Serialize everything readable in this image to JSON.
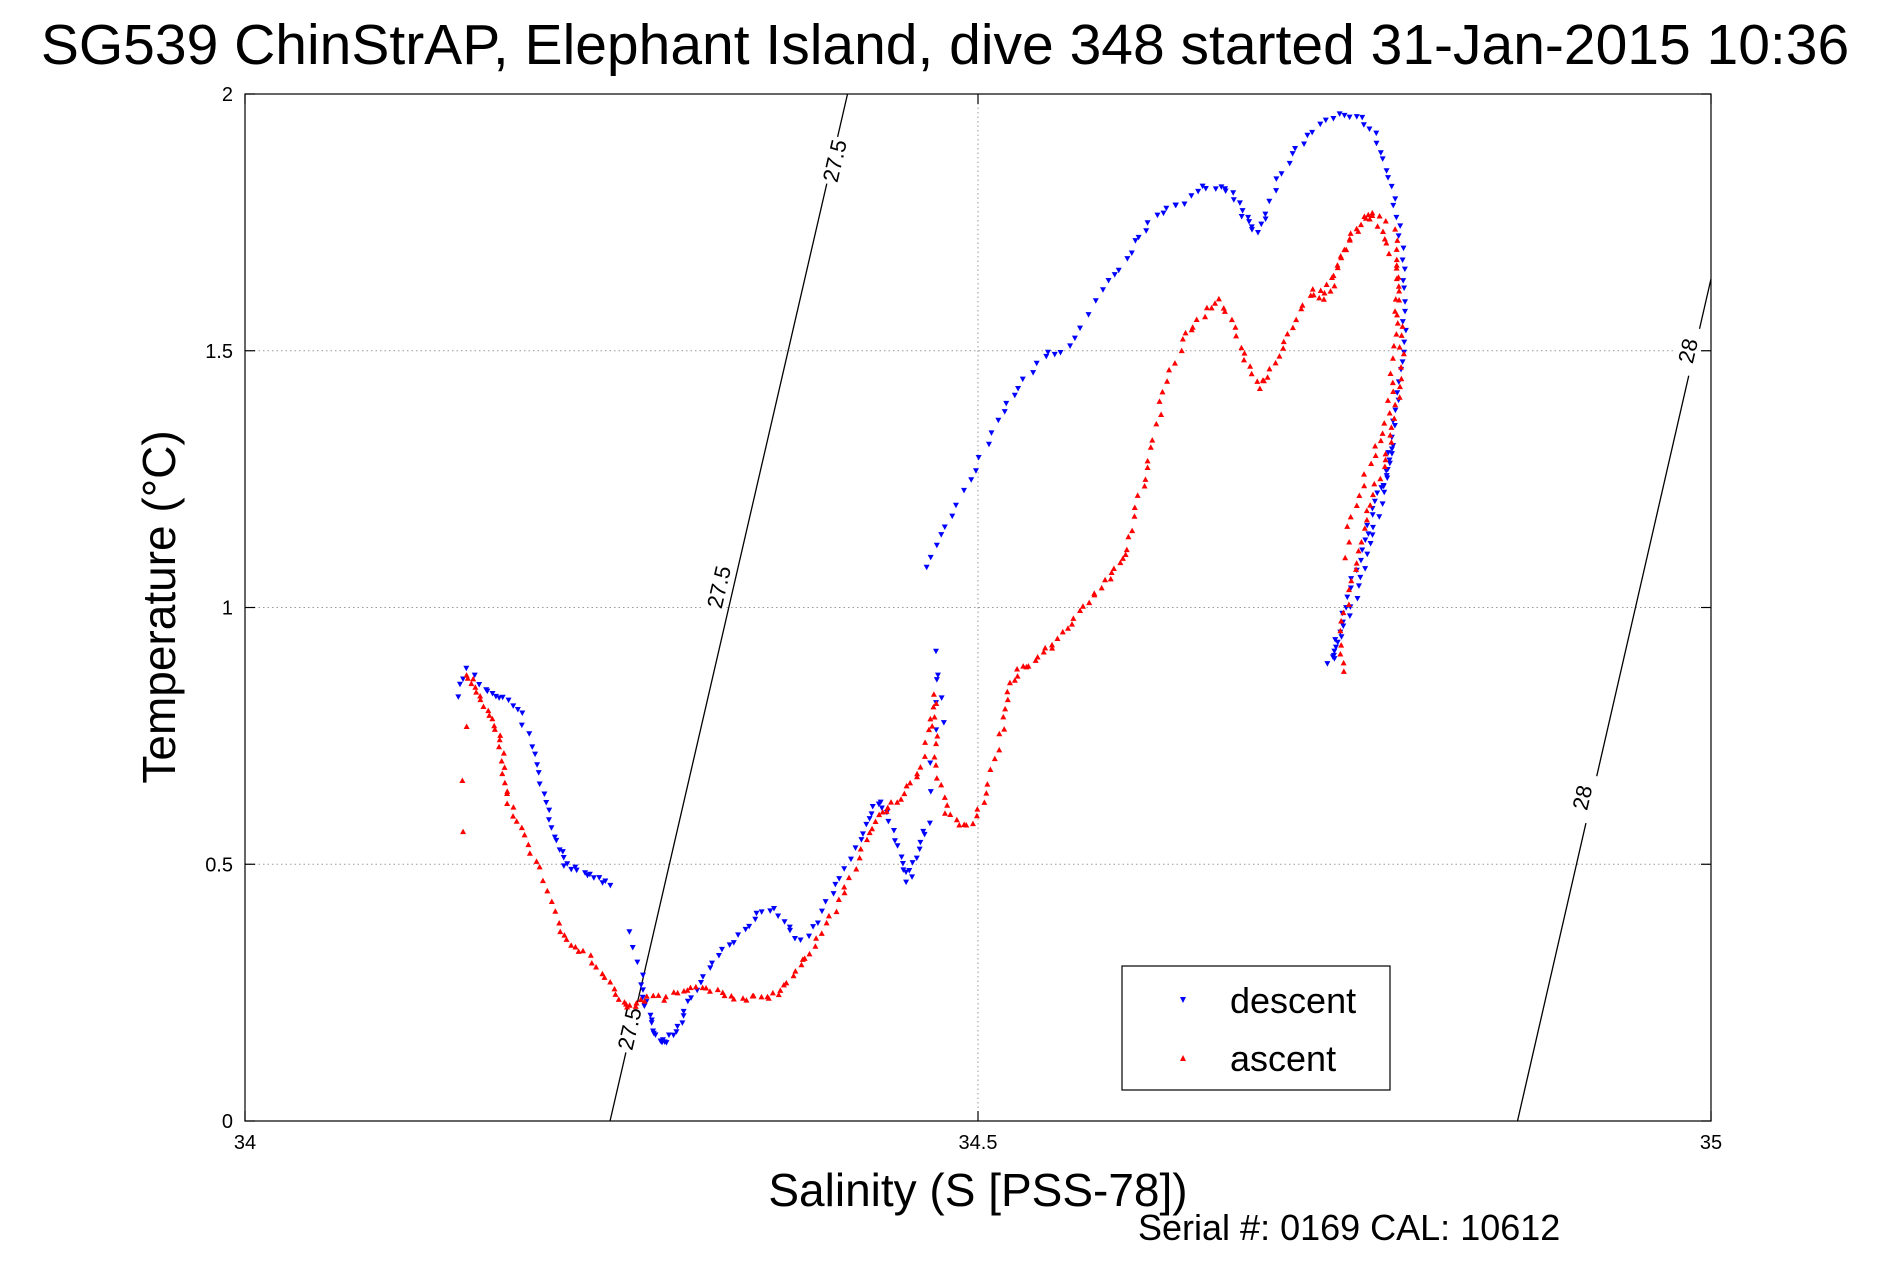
{
  "chart_data": {
    "type": "scatter",
    "title": "SG539 ChinStrAP, Elephant Island, dive 348 started 31-Jan-2015 10:36",
    "xlabel": "Salinity (S [PSS-78])",
    "ylabel": "Temperature (°C)",
    "xlim": [
      34,
      35
    ],
    "ylim": [
      0,
      2
    ],
    "x_ticks": [
      34,
      34.5,
      35
    ],
    "x_tick_labels": [
      "34",
      "34.5",
      "35"
    ],
    "y_ticks": [
      0,
      0.5,
      1,
      1.5,
      2
    ],
    "y_tick_labels": [
      "0",
      "0.5",
      "1",
      "1.5",
      "2"
    ],
    "grid": true,
    "legend_position": "bottom-right",
    "footer": "Serial #: 0169 CAL: 10612",
    "contours": [
      {
        "label": "27.5",
        "points": [
          [
            34.249,
            0
          ],
          [
            34.411,
            2
          ]
        ],
        "label_positions": [
          [
            34.262,
            0.18
          ],
          [
            34.323,
            1.04
          ],
          [
            34.402,
            1.87
          ]
        ]
      },
      {
        "label": "28",
        "points": [
          [
            34.868,
            0
          ],
          [
            35,
            1.64
          ]
        ],
        "label_positions": [
          [
            34.912,
            0.63
          ],
          [
            34.984,
            1.5
          ]
        ]
      }
    ],
    "colors": {
      "descent": "#0000ff",
      "ascent": "#ff0000"
    },
    "series": [
      {
        "name": "descent",
        "marker": "triangle-down",
        "tracks": [
          [
            [
              34.145,
              0.83
            ],
            [
              34.152,
              0.88
            ],
            [
              34.163,
              0.84
            ],
            [
              34.172,
              0.83
            ],
            [
              34.18,
              0.82
            ],
            [
              34.188,
              0.79
            ],
            [
              34.195,
              0.73
            ],
            [
              34.2,
              0.68
            ],
            [
              34.205,
              0.62
            ],
            [
              34.21,
              0.57
            ],
            [
              34.214,
              0.53
            ],
            [
              34.218,
              0.5
            ],
            [
              34.225,
              0.49
            ],
            [
              34.233,
              0.48
            ],
            [
              34.24,
              0.47
            ],
            [
              34.248,
              0.46
            ]
          ],
          [
            [
              34.262,
              0.37
            ],
            [
              34.27,
              0.28
            ],
            [
              34.272,
              0.24
            ],
            [
              34.275,
              0.21
            ],
            [
              34.279,
              0.18
            ],
            [
              34.283,
              0.16
            ],
            [
              34.287,
              0.15
            ],
            [
              34.292,
              0.17
            ],
            [
              34.297,
              0.19
            ],
            [
              34.302,
              0.23
            ],
            [
              34.31,
              0.27
            ],
            [
              34.32,
              0.31
            ],
            [
              34.33,
              0.34
            ],
            [
              34.34,
              0.37
            ],
            [
              34.35,
              0.4
            ],
            [
              34.36,
              0.41
            ],
            [
              34.37,
              0.38
            ],
            [
              34.38,
              0.35
            ],
            [
              34.39,
              0.39
            ],
            [
              34.4,
              0.44
            ],
            [
              34.41,
              0.49
            ],
            [
              34.42,
              0.55
            ],
            [
              34.425,
              0.59
            ],
            [
              34.432,
              0.62
            ],
            [
              34.438,
              0.6
            ],
            [
              34.443,
              0.55
            ],
            [
              34.448,
              0.5
            ],
            [
              34.452,
              0.47
            ],
            [
              34.456,
              0.5
            ],
            [
              34.461,
              0.54
            ],
            [
              34.466,
              0.58
            ],
            [
              34.47,
              0.76
            ],
            [
              34.473,
              0.91
            ],
            [
              34.477,
              0.78
            ]
          ],
          [
            [
              34.466,
              1.08
            ],
            [
              34.475,
              1.14
            ],
            [
              34.486,
              1.2
            ],
            [
              34.498,
              1.27
            ],
            [
              34.51,
              1.34
            ],
            [
              34.52,
              1.4
            ],
            [
              34.532,
              1.44
            ],
            [
              34.545,
              1.49
            ],
            [
              34.557,
              1.5
            ],
            [
              34.57,
              1.54
            ],
            [
              34.585,
              1.62
            ],
            [
              34.597,
              1.66
            ],
            [
              34.607,
              1.71
            ],
            [
              34.617,
              1.75
            ],
            [
              34.63,
              1.78
            ],
            [
              34.64,
              1.79
            ],
            [
              34.653,
              1.82
            ],
            [
              34.665,
              1.82
            ],
            [
              34.673,
              1.81
            ],
            [
              34.679,
              1.77
            ],
            [
              34.685,
              1.75
            ],
            [
              34.69,
              1.73
            ],
            [
              34.697,
              1.77
            ],
            [
              34.705,
              1.83
            ],
            [
              34.714,
              1.88
            ],
            [
              34.725,
              1.92
            ],
            [
              34.737,
              1.95
            ],
            [
              34.75,
              1.96
            ],
            [
              34.762,
              1.95
            ],
            [
              34.77,
              1.92
            ],
            [
              34.777,
              1.87
            ],
            [
              34.782,
              1.82
            ],
            [
              34.786,
              1.76
            ],
            [
              34.789,
              1.7
            ],
            [
              34.79,
              1.64
            ],
            [
              34.791,
              1.58
            ],
            [
              34.791,
              1.52
            ],
            [
              34.789,
              1.46
            ],
            [
              34.786,
              1.4
            ],
            [
              34.783,
              1.35
            ],
            [
              34.781,
              1.3
            ],
            [
              34.778,
              1.25
            ],
            [
              34.773,
              1.22
            ],
            [
              34.768,
              1.18
            ],
            [
              34.763,
              1.13
            ],
            [
              34.758,
              1.07
            ],
            [
              34.752,
              1.02
            ],
            [
              34.748,
              0.97
            ],
            [
              34.743,
              0.92
            ],
            [
              34.74,
              0.89
            ],
            [
              34.745,
              0.93
            ],
            [
              34.752,
              0.98
            ],
            [
              34.76,
              1.04
            ],
            [
              34.766,
              1.1
            ],
            [
              34.771,
              1.16
            ],
            [
              34.776,
              1.22
            ],
            [
              34.78,
              1.27
            ],
            [
              34.784,
              1.31
            ]
          ]
        ]
      },
      {
        "name": "ascent",
        "marker": "triangle-up",
        "tracks": [
          [
            [
              34.75,
              0.88
            ],
            [
              34.747,
              0.93
            ],
            [
              34.75,
              0.99
            ],
            [
              34.755,
              1.05
            ],
            [
              34.76,
              1.11
            ],
            [
              34.765,
              1.17
            ],
            [
              34.77,
              1.22
            ],
            [
              34.776,
              1.27
            ],
            [
              34.781,
              1.32
            ],
            [
              34.785,
              1.37
            ],
            [
              34.788,
              1.43
            ],
            [
              34.789,
              1.49
            ],
            [
              34.788,
              1.55
            ],
            [
              34.786,
              1.62
            ],
            [
              34.784,
              1.68
            ],
            [
              34.777,
              1.72
            ],
            [
              34.77,
              1.76
            ],
            [
              34.762,
              1.76
            ],
            [
              34.755,
              1.73
            ],
            [
              34.748,
              1.68
            ],
            [
              34.742,
              1.63
            ],
            [
              34.735,
              1.6
            ],
            [
              34.728,
              1.62
            ],
            [
              34.72,
              1.58
            ],
            [
              34.712,
              1.53
            ],
            [
              34.705,
              1.49
            ],
            [
              34.698,
              1.45
            ],
            [
              34.692,
              1.43
            ],
            [
              34.685,
              1.47
            ],
            [
              34.678,
              1.51
            ],
            [
              34.672,
              1.56
            ],
            [
              34.664,
              1.6
            ],
            [
              34.656,
              1.58
            ],
            [
              34.648,
              1.55
            ],
            [
              34.64,
              1.52
            ],
            [
              34.632,
              1.46
            ],
            [
              34.625,
              1.4
            ],
            [
              34.62,
              1.33
            ],
            [
              34.616,
              1.27
            ],
            [
              34.61,
              1.22
            ],
            [
              34.604,
              1.15
            ],
            [
              34.6,
              1.1
            ],
            [
              34.594,
              1.08
            ],
            [
              34.587,
              1.05
            ],
            [
              34.578,
              1.02
            ],
            [
              34.568,
              0.99
            ],
            [
              34.56,
              0.96
            ],
            [
              34.552,
              0.93
            ],
            [
              34.544,
              0.91
            ],
            [
              34.535,
              0.89
            ],
            [
              34.528,
              0.88
            ],
            [
              34.522,
              0.85
            ],
            [
              34.518,
              0.8
            ],
            [
              34.516,
              0.75
            ],
            [
              34.51,
              0.68
            ],
            [
              34.503,
              0.62
            ],
            [
              34.495,
              0.58
            ],
            [
              34.487,
              0.58
            ],
            [
              34.479,
              0.6
            ],
            [
              34.474,
              0.65
            ],
            [
              34.472,
              0.71
            ],
            [
              34.47,
              0.77
            ],
            [
              34.47,
              0.83
            ],
            [
              34.467,
              0.76
            ],
            [
              34.462,
              0.69
            ],
            [
              34.455,
              0.66
            ],
            [
              34.447,
              0.63
            ],
            [
              34.44,
              0.61
            ],
            [
              34.432,
              0.6
            ],
            [
              34.425,
              0.56
            ],
            [
              34.418,
              0.51
            ],
            [
              34.41,
              0.46
            ],
            [
              34.402,
              0.41
            ],
            [
              34.393,
              0.37
            ],
            [
              34.385,
              0.33
            ],
            [
              34.378,
              0.3
            ],
            [
              34.37,
              0.27
            ],
            [
              34.363,
              0.25
            ],
            [
              34.355,
              0.24
            ],
            [
              34.345,
              0.24
            ],
            [
              34.335,
              0.24
            ],
            [
              34.325,
              0.25
            ],
            [
              34.315,
              0.26
            ],
            [
              34.305,
              0.26
            ],
            [
              34.295,
              0.25
            ],
            [
              34.285,
              0.24
            ],
            [
              34.275,
              0.24
            ],
            [
              34.268,
              0.23
            ],
            [
              34.262,
              0.22
            ],
            [
              34.256,
              0.24
            ],
            [
              34.248,
              0.27
            ],
            [
              34.24,
              0.3
            ],
            [
              34.232,
              0.33
            ],
            [
              34.223,
              0.34
            ],
            [
              34.215,
              0.37
            ],
            [
              34.208,
              0.43
            ],
            [
              34.2,
              0.49
            ],
            [
              34.193,
              0.54
            ],
            [
              34.185,
              0.58
            ],
            [
              34.18,
              0.62
            ],
            [
              34.177,
              0.66
            ],
            [
              34.176,
              0.7
            ],
            [
              34.174,
              0.74
            ],
            [
              34.17,
              0.77
            ],
            [
              34.165,
              0.8
            ],
            [
              34.16,
              0.83
            ],
            [
              34.155,
              0.85
            ],
            [
              34.152,
              0.87
            ],
            [
              34.148,
              0.56
            ]
          ],
          [
            [
              34.75,
              1.1
            ],
            [
              34.755,
              1.18
            ],
            [
              34.762,
              1.24
            ],
            [
              34.77,
              1.3
            ],
            [
              34.776,
              1.34
            ],
            [
              34.781,
              1.4
            ],
            [
              34.783,
              1.46
            ],
            [
              34.785,
              1.53
            ],
            [
              34.786,
              1.6
            ],
            [
              34.787,
              1.67
            ],
            [
              34.784,
              1.74
            ],
            [
              34.77,
              1.77
            ],
            [
              34.755,
              1.72
            ],
            [
              34.745,
              1.66
            ],
            [
              34.735,
              1.62
            ]
          ]
        ]
      }
    ]
  }
}
